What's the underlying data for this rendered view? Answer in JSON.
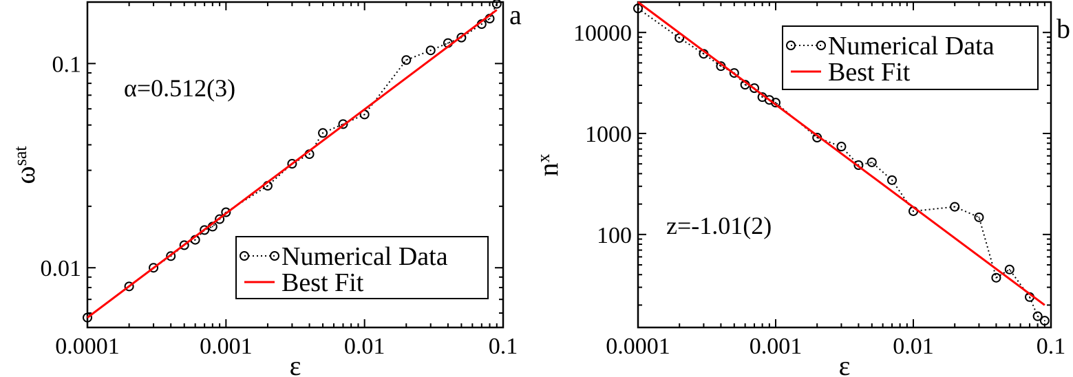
{
  "chart_data": [
    {
      "type": "scatter",
      "panel_label": "a",
      "xlabel": "ε",
      "ylabel": "ω",
      "ylabel_sub": "sat",
      "xscale": "log",
      "yscale": "log",
      "xlim": [
        0.0001,
        0.1
      ],
      "ylim": [
        0.0051,
        0.2
      ],
      "xticks": [
        {
          "v": 0.0001,
          "label": "0.0001"
        },
        {
          "v": 0.001,
          "label": "0.001"
        },
        {
          "v": 0.01,
          "label": "0.01"
        },
        {
          "v": 0.1,
          "label": "0.1"
        }
      ],
      "yticks": [
        {
          "v": 0.01,
          "label": "0.01"
        },
        {
          "v": 0.1,
          "label": "0.1"
        }
      ],
      "annotation": "α=0.512(3)",
      "legend_position": "bottom-right",
      "grid": false,
      "series": [
        {
          "name": "Numerical Data",
          "style": "dotted-circles",
          "color": "#000000",
          "x": [
            0.0001,
            0.0002,
            0.0003,
            0.0004,
            0.0005,
            0.0006,
            0.0007,
            0.0008,
            0.0009,
            0.001,
            0.002,
            0.003,
            0.004,
            0.005,
            0.007,
            0.01,
            0.02,
            0.03,
            0.04,
            0.05,
            0.07,
            0.08,
            0.09
          ],
          "y": [
            0.0057,
            0.0081,
            0.01,
            0.0114,
            0.0129,
            0.0137,
            0.0153,
            0.0159,
            0.0173,
            0.0187,
            0.0252,
            0.0323,
            0.036,
            0.0457,
            0.0505,
            0.0563,
            0.104,
            0.116,
            0.126,
            0.134,
            0.156,
            0.166,
            0.196
          ]
        },
        {
          "name": "Best Fit",
          "style": "line",
          "color": "#ff0000",
          "x": [
            0.0001,
            0.09
          ],
          "y": [
            0.0057,
            0.183
          ]
        }
      ]
    },
    {
      "type": "scatter",
      "panel_label": "b",
      "xlabel": "ε",
      "ylabel": "n",
      "ylabel_sub": "x",
      "xscale": "log",
      "yscale": "log",
      "xlim": [
        0.0001,
        0.1
      ],
      "ylim": [
        12,
        20000
      ],
      "xticks": [
        {
          "v": 0.0001,
          "label": "0.0001"
        },
        {
          "v": 0.001,
          "label": "0.001"
        },
        {
          "v": 0.01,
          "label": "0.01"
        },
        {
          "v": 0.1,
          "label": "0.1"
        }
      ],
      "yticks": [
        {
          "v": 100,
          "label": "100"
        },
        {
          "v": 1000,
          "label": "1000"
        },
        {
          "v": 10000,
          "label": "10000"
        }
      ],
      "annotation": "z=-1.01(2)",
      "legend_position": "top-right",
      "grid": false,
      "series": [
        {
          "name": "Numerical Data",
          "style": "dotted-circles",
          "color": "#000000",
          "x": [
            0.0001,
            0.0002,
            0.0003,
            0.0004,
            0.0005,
            0.0006,
            0.0007,
            0.0008,
            0.0009,
            0.001,
            0.002,
            0.003,
            0.004,
            0.005,
            0.007,
            0.01,
            0.02,
            0.03,
            0.04,
            0.05,
            0.07,
            0.08,
            0.09
          ],
          "y": [
            17300,
            8820,
            6150,
            4640,
            3970,
            3040,
            2810,
            2290,
            2150,
            2020,
            910,
            742,
            486,
            518,
            345,
            170,
            188,
            148,
            37.3,
            45,
            24,
            15.5,
            14
          ]
        },
        {
          "name": "Best Fit",
          "style": "line",
          "color": "#ff0000",
          "x": [
            0.0001,
            0.09
          ],
          "y": [
            20000,
            20
          ]
        }
      ]
    }
  ]
}
